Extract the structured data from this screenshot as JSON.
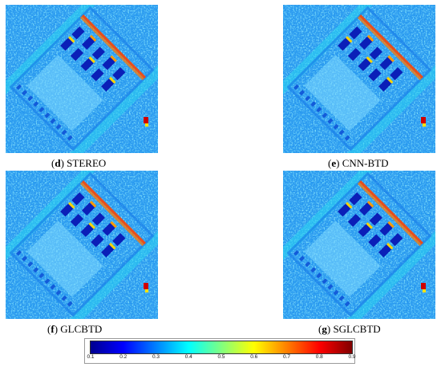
{
  "panels": [
    {
      "letter": "d",
      "label": "STEREO"
    },
    {
      "letter": "e",
      "label": "CNN-BTD"
    },
    {
      "letter": "f",
      "label": "GLCBTD"
    },
    {
      "letter": "g",
      "label": "SGLCBTD"
    }
  ],
  "colorbar": {
    "ticks": [
      "0.1",
      "0.2",
      "0.3",
      "0.4",
      "0.5",
      "0.6",
      "0.7",
      "0.8",
      "0.9"
    ],
    "colormap": [
      "#00008f",
      "#0000ff",
      "#0080ff",
      "#00ffff",
      "#80ff80",
      "#ffff00",
      "#ff8000",
      "#ff0000",
      "#800000"
    ]
  }
}
